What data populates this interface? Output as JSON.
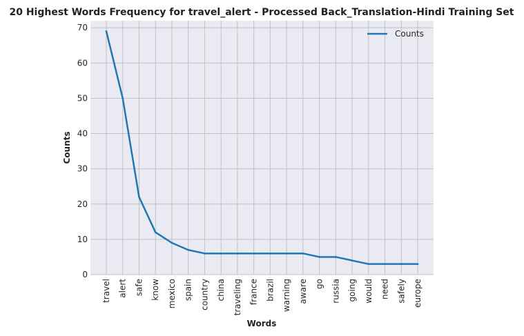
{
  "chart_data": {
    "type": "line",
    "title": "20 Highest Words Frequency for travel_alert - Processed Back_Translation-Hindi Training Set",
    "xlabel": "Words",
    "ylabel": "Counts",
    "categories": [
      "travel",
      "alert",
      "safe",
      "know",
      "mexico",
      "spain",
      "country",
      "china",
      "traveling",
      "france",
      "brazil",
      "warning",
      "aware",
      "go",
      "russia",
      "going",
      "would",
      "need",
      "safely",
      "europe"
    ],
    "series": [
      {
        "name": "Counts",
        "values": [
          69,
          50,
          22,
          12,
          9,
          7,
          6,
          6,
          6,
          6,
          6,
          6,
          6,
          5,
          5,
          4,
          3,
          3,
          3,
          3
        ],
        "color": "#1f77b4"
      }
    ],
    "ylim": [
      0,
      72
    ],
    "yticks": [
      0,
      10,
      20,
      30,
      40,
      50,
      60,
      70
    ],
    "grid": true,
    "legend_position": "top-right",
    "background_color": "#eaeaf2",
    "grid_color": "#c0c0c8"
  }
}
